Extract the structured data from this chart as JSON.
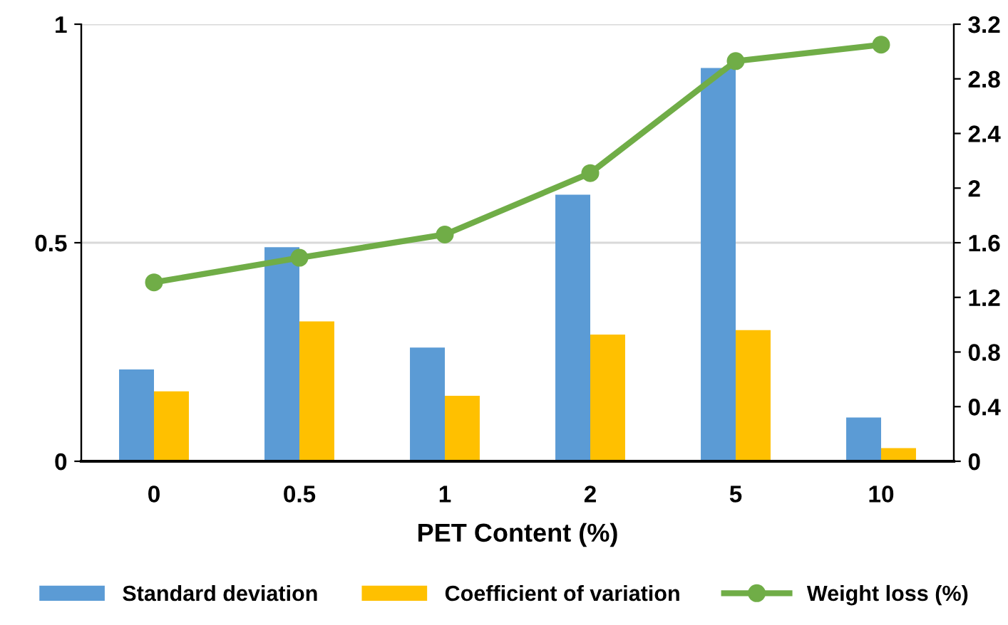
{
  "chart_data": {
    "type": "bar",
    "xlabel": "PET Content (%)",
    "categories": [
      "0",
      "0.5",
      "1",
      "2",
      "5",
      "10"
    ],
    "series": [
      {
        "name": "Standard deviation",
        "color": "#5b9bd5",
        "values": [
          0.21,
          0.49,
          0.26,
          0.61,
          0.9,
          0.1
        ]
      },
      {
        "name": "Coefficient of variation",
        "color": "#ffc000",
        "values": [
          0.16,
          0.32,
          0.15,
          0.29,
          0.3,
          0.03
        ]
      },
      {
        "name": "Weight loss (%)",
        "color": "#70ad47",
        "type": "line",
        "axis": "y2",
        "marker": "circle",
        "values": [
          1.31,
          1.49,
          1.66,
          2.11,
          2.93,
          3.05
        ]
      }
    ],
    "ylim": [
      0,
      1
    ],
    "yticks": [
      0,
      0.5,
      1
    ],
    "y2lim": [
      0,
      3.2
    ],
    "y2ticks": [
      0,
      0.4,
      0.8,
      1.2,
      1.6,
      2,
      2.4,
      2.8,
      3.2
    ],
    "grid": "y",
    "legend": "bottom"
  }
}
